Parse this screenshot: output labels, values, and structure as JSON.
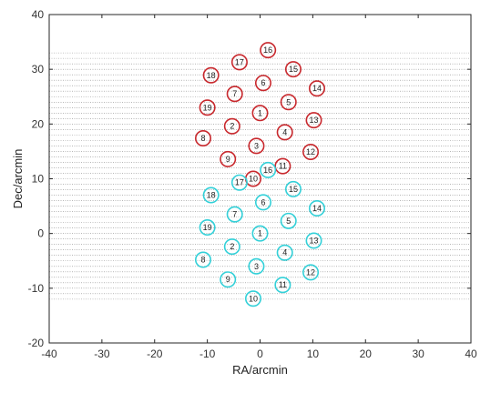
{
  "chart_data": {
    "type": "scatter",
    "title": "",
    "xlabel": "RA/arcmin",
    "ylabel": "Dec/arcmin",
    "xlim": [
      -40,
      40
    ],
    "ylim": [
      -20,
      40
    ],
    "xticks": [
      -40,
      -30,
      -20,
      -10,
      0,
      10,
      20,
      30,
      40
    ],
    "yticks": [
      -20,
      -10,
      0,
      10,
      20,
      30,
      40
    ],
    "grid": "horizontal dotted scan lines",
    "scan_lines": {
      "y_start": -12,
      "y_end": 33.5,
      "step": 1
    },
    "colors": {
      "series_1": "#c8282d",
      "series_2": "#33d0d8",
      "scan_line": "#8a8a8a",
      "axis": "#262626"
    },
    "series": [
      {
        "points": [
          {
            "label": "1",
            "x": 0.0,
            "y": 22.0
          },
          {
            "label": "2",
            "x": -5.3,
            "y": 19.6
          },
          {
            "label": "3",
            "x": -0.7,
            "y": 16.0
          },
          {
            "label": "4",
            "x": 4.7,
            "y": 18.5
          },
          {
            "label": "5",
            "x": 5.4,
            "y": 24.0
          },
          {
            "label": "6",
            "x": 0.6,
            "y": 27.5
          },
          {
            "label": "7",
            "x": -4.8,
            "y": 25.5
          },
          {
            "label": "8",
            "x": -10.8,
            "y": 17.4
          },
          {
            "label": "9",
            "x": -6.1,
            "y": 13.6
          },
          {
            "label": "10",
            "x": -1.3,
            "y": 10.0
          },
          {
            "label": "11",
            "x": 4.3,
            "y": 12.3
          },
          {
            "label": "12",
            "x": 9.6,
            "y": 14.9
          },
          {
            "label": "13",
            "x": 10.2,
            "y": 20.7
          },
          {
            "label": "14",
            "x": 10.8,
            "y": 26.5
          },
          {
            "label": "15",
            "x": 6.3,
            "y": 30.0
          },
          {
            "label": "16",
            "x": 1.5,
            "y": 33.5
          },
          {
            "label": "17",
            "x": -3.9,
            "y": 31.3
          },
          {
            "label": "18",
            "x": -9.3,
            "y": 28.9
          },
          {
            "label": "19",
            "x": -10.0,
            "y": 23.0
          }
        ]
      },
      {
        "points": [
          {
            "label": "1",
            "x": 0.0,
            "y": 0.0
          },
          {
            "label": "2",
            "x": -5.3,
            "y": -2.4
          },
          {
            "label": "3",
            "x": -0.7,
            "y": -6.0
          },
          {
            "label": "4",
            "x": 4.7,
            "y": -3.5
          },
          {
            "label": "5",
            "x": 5.4,
            "y": 2.3
          },
          {
            "label": "6",
            "x": 0.6,
            "y": 5.7
          },
          {
            "label": "7",
            "x": -4.8,
            "y": 3.5
          },
          {
            "label": "8",
            "x": -10.8,
            "y": -4.8
          },
          {
            "label": "9",
            "x": -6.1,
            "y": -8.4
          },
          {
            "label": "10",
            "x": -1.3,
            "y": -11.9
          },
          {
            "label": "11",
            "x": 4.3,
            "y": -9.4
          },
          {
            "label": "12",
            "x": 9.6,
            "y": -7.1
          },
          {
            "label": "13",
            "x": 10.2,
            "y": -1.3
          },
          {
            "label": "14",
            "x": 10.8,
            "y": 4.6
          },
          {
            "label": "15",
            "x": 6.3,
            "y": 8.1
          },
          {
            "label": "16",
            "x": 1.5,
            "y": 11.6
          },
          {
            "label": "17",
            "x": -3.9,
            "y": 9.3
          },
          {
            "label": "18",
            "x": -9.3,
            "y": 7.0
          },
          {
            "label": "19",
            "x": -10.0,
            "y": 1.1
          }
        ]
      }
    ]
  }
}
